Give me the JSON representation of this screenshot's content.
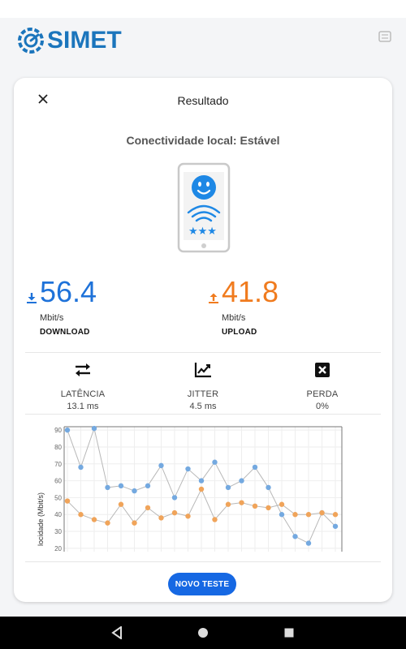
{
  "app": {
    "logo_text": "SIMET"
  },
  "card": {
    "title": "Resultado",
    "connectivity": "Conectividade local: Estável"
  },
  "download": {
    "value": "56.4",
    "unit": "Mbit/s",
    "label": "DOWNLOAD",
    "color": "#1e72d9"
  },
  "upload": {
    "value": "41.8",
    "unit": "Mbit/s",
    "label": "UPLOAD",
    "color": "#f07b1e"
  },
  "stats": [
    {
      "name": "LATÊNCIA",
      "value": "13.1 ms",
      "icon": "swap-arrows-icon"
    },
    {
      "name": "JITTER",
      "value": "4.5 ms",
      "icon": "trending-chart-icon"
    },
    {
      "name": "PERDA",
      "value": "0%",
      "icon": "x-box-icon"
    }
  ],
  "chart_data": {
    "type": "line",
    "ylabel": "locidade (Mbit/s)",
    "yticks": [
      "20",
      "30",
      "40",
      "50",
      "60",
      "70",
      "80",
      "90"
    ],
    "ylim": [
      18,
      92
    ],
    "grid": true,
    "series": [
      {
        "color": "#74a9e0",
        "values": [
          90,
          68,
          91,
          56,
          57,
          54,
          57,
          69,
          50,
          67,
          60,
          71,
          56,
          60,
          68,
          56,
          40,
          27,
          23,
          41,
          33
        ]
      },
      {
        "color": "#f0a45a",
        "values": [
          48,
          40,
          37,
          35,
          46,
          35,
          44,
          38,
          41,
          39,
          55,
          37,
          46,
          47,
          45,
          44,
          46,
          40,
          40,
          41,
          40
        ]
      }
    ]
  },
  "button": {
    "new_test": "NOVO TESTE"
  }
}
